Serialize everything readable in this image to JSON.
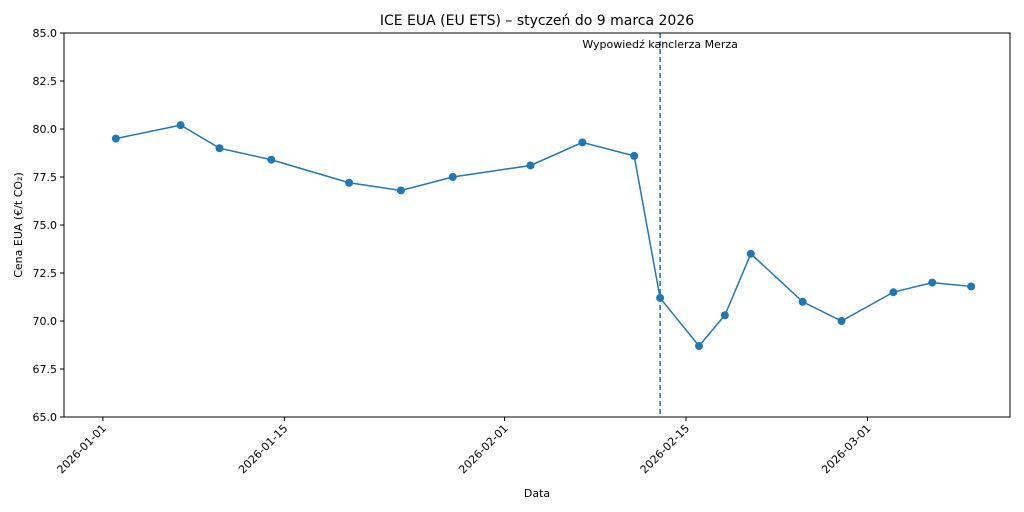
{
  "chart_data": {
    "type": "line",
    "title": "ICE EUA (EU ETS) – styczeń do 9 marca 2026",
    "xlabel": "Data",
    "ylabel": "Cena EUA (€/t CO₂)",
    "xlim": [
      "2025-12-29",
      "2026-03-12"
    ],
    "ylim": [
      65.0,
      85.0
    ],
    "yticks": [
      "65.0",
      "67.5",
      "70.0",
      "72.5",
      "75.0",
      "77.5",
      "80.0",
      "82.5",
      "85.0"
    ],
    "xticks": [
      "2026-01-01",
      "2026-01-15",
      "2026-02-01",
      "2026-02-15",
      "2026-03-01"
    ],
    "grid": false,
    "series": [
      {
        "color": "#1f77b4",
        "marker": "circle",
        "x": [
          "2026-01-02",
          "2026-01-07",
          "2026-01-10",
          "2026-01-14",
          "2026-01-20",
          "2026-01-24",
          "2026-01-28",
          "2026-02-03",
          "2026-02-07",
          "2026-02-11",
          "2026-02-13",
          "2026-02-16",
          "2026-02-18",
          "2026-02-20",
          "2026-02-24",
          "2026-02-27",
          "2026-03-03",
          "2026-03-06",
          "2026-03-09"
        ],
        "y": [
          79.5,
          80.2,
          79.0,
          78.4,
          77.2,
          76.8,
          77.5,
          78.1,
          79.3,
          78.6,
          71.2,
          68.7,
          70.3,
          73.5,
          71.0,
          70.0,
          71.5,
          72.0,
          71.8
        ]
      }
    ],
    "vline": {
      "x": "2026-02-13",
      "style": "dashed",
      "color": "#1f77b4",
      "label": "Wypowiedź kanclerza Merza"
    }
  }
}
